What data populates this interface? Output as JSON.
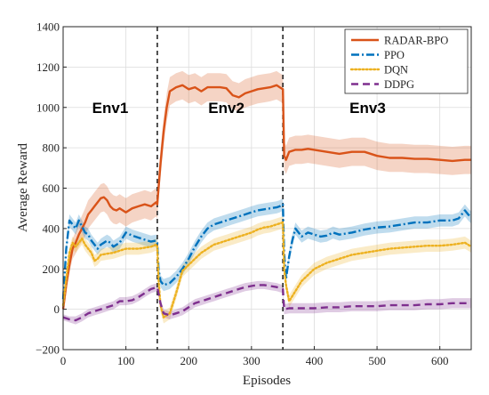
{
  "chart_data": {
    "type": "line",
    "xlabel": "Episodes",
    "ylabel": "Average Reward",
    "xlim": [
      0,
      650
    ],
    "ylim": [
      -200,
      1400
    ],
    "xticks": [
      0,
      100,
      200,
      300,
      400,
      500,
      600
    ],
    "yticks": [
      -200,
      0,
      200,
      400,
      600,
      800,
      1000,
      1200,
      1400
    ],
    "grid": true,
    "legend_position": "top-right",
    "env_boundaries": [
      150,
      350
    ],
    "annotations": [
      {
        "text": "Env1",
        "x": 75,
        "y": 1000
      },
      {
        "text": "Env2",
        "x": 260,
        "y": 1000
      },
      {
        "text": "Env3",
        "x": 485,
        "y": 1000
      }
    ],
    "series": [
      {
        "name": "RADAR-BPO",
        "color": "#d95319",
        "line_style": "solid",
        "x": [
          0,
          5,
          10,
          15,
          20,
          25,
          30,
          35,
          40,
          45,
          50,
          55,
          60,
          65,
          70,
          75,
          80,
          85,
          90,
          95,
          100,
          110,
          120,
          130,
          140,
          148,
          150,
          152,
          155,
          160,
          165,
          170,
          180,
          190,
          200,
          210,
          220,
          230,
          240,
          250,
          260,
          270,
          280,
          290,
          300,
          310,
          320,
          330,
          340,
          345,
          350,
          352,
          355,
          360,
          370,
          380,
          390,
          400,
          420,
          440,
          460,
          480,
          500,
          520,
          540,
          560,
          580,
          600,
          620,
          640,
          650
        ],
        "values": [
          0,
          120,
          220,
          300,
          330,
          370,
          400,
          430,
          470,
          490,
          510,
          530,
          550,
          555,
          540,
          510,
          495,
          490,
          500,
          490,
          480,
          500,
          510,
          520,
          510,
          530,
          520,
          600,
          720,
          880,
          1000,
          1080,
          1100,
          1110,
          1090,
          1100,
          1080,
          1100,
          1100,
          1100,
          1095,
          1060,
          1050,
          1070,
          1080,
          1090,
          1095,
          1100,
          1110,
          1100,
          1090,
          760,
          740,
          780,
          790,
          790,
          795,
          790,
          780,
          770,
          780,
          780,
          760,
          750,
          750,
          745,
          745,
          740,
          735,
          740,
          740
        ],
        "band": [
          20,
          20,
          40,
          50,
          55,
          60,
          65,
          70,
          70,
          70,
          70,
          70,
          70,
          70,
          70,
          70,
          70,
          70,
          70,
          70,
          70,
          70,
          70,
          70,
          70,
          70,
          70,
          70,
          70,
          70,
          70,
          70,
          70,
          70,
          70,
          70,
          70,
          70,
          70,
          70,
          70,
          70,
          70,
          70,
          70,
          70,
          70,
          70,
          70,
          70,
          70,
          70,
          70,
          70,
          70,
          70,
          70,
          70,
          70,
          70,
          70,
          70,
          70,
          70,
          70,
          70,
          70,
          70,
          70,
          70,
          70
        ]
      },
      {
        "name": "PPO",
        "color": "#0072bd",
        "line_style": "dashdot",
        "x": [
          0,
          5,
          10,
          15,
          20,
          25,
          30,
          35,
          40,
          45,
          50,
          55,
          60,
          65,
          70,
          75,
          80,
          90,
          100,
          110,
          120,
          130,
          140,
          148,
          150,
          152,
          155,
          160,
          170,
          180,
          190,
          200,
          210,
          220,
          230,
          240,
          250,
          260,
          270,
          280,
          290,
          300,
          310,
          320,
          330,
          340,
          345,
          350,
          352,
          355,
          360,
          365,
          370,
          375,
          380,
          390,
          400,
          410,
          420,
          430,
          440,
          460,
          480,
          500,
          520,
          540,
          560,
          580,
          600,
          620,
          630,
          640,
          645,
          650
        ],
        "values": [
          50,
          300,
          440,
          420,
          400,
          440,
          410,
          380,
          370,
          340,
          320,
          300,
          320,
          330,
          340,
          330,
          310,
          330,
          380,
          365,
          355,
          345,
          335,
          340,
          330,
          200,
          140,
          120,
          130,
          160,
          200,
          250,
          310,
          360,
          400,
          420,
          430,
          440,
          450,
          460,
          470,
          480,
          490,
          495,
          500,
          505,
          510,
          520,
          280,
          150,
          260,
          340,
          400,
          380,
          360,
          380,
          370,
          360,
          365,
          380,
          370,
          380,
          395,
          405,
          410,
          420,
          430,
          430,
          440,
          440,
          450,
          490,
          470,
          455
        ],
        "band": [
          20,
          20,
          30,
          30,
          30,
          30,
          30,
          30,
          30,
          30,
          30,
          30,
          30,
          30,
          30,
          30,
          30,
          30,
          30,
          30,
          30,
          30,
          30,
          30,
          30,
          30,
          30,
          30,
          30,
          30,
          30,
          30,
          30,
          30,
          30,
          30,
          30,
          30,
          30,
          30,
          30,
          30,
          30,
          30,
          30,
          30,
          30,
          30,
          30,
          30,
          30,
          30,
          30,
          30,
          30,
          30,
          30,
          30,
          30,
          30,
          30,
          30,
          30,
          30,
          30,
          30,
          30,
          30,
          30,
          30,
          30,
          30,
          30,
          30
        ]
      },
      {
        "name": "DQN",
        "color": "#edb120",
        "line_style": "dotted",
        "x": [
          0,
          5,
          10,
          15,
          20,
          25,
          30,
          35,
          40,
          45,
          50,
          55,
          60,
          70,
          80,
          90,
          100,
          110,
          120,
          130,
          140,
          148,
          150,
          152,
          155,
          160,
          170,
          180,
          190,
          200,
          210,
          220,
          230,
          240,
          250,
          260,
          270,
          280,
          290,
          300,
          310,
          320,
          330,
          340,
          350,
          352,
          355,
          360,
          370,
          380,
          390,
          400,
          420,
          440,
          460,
          480,
          500,
          520,
          540,
          560,
          580,
          600,
          620,
          640,
          645,
          650
        ],
        "values": [
          20,
          150,
          280,
          330,
          310,
          330,
          350,
          320,
          300,
          280,
          240,
          250,
          270,
          275,
          280,
          290,
          300,
          300,
          300,
          305,
          310,
          320,
          310,
          150,
          20,
          -40,
          -20,
          80,
          190,
          220,
          250,
          280,
          300,
          320,
          330,
          340,
          350,
          360,
          370,
          380,
          395,
          405,
          410,
          420,
          430,
          200,
          120,
          40,
          90,
          140,
          170,
          200,
          230,
          250,
          270,
          280,
          290,
          300,
          305,
          310,
          315,
          315,
          320,
          330,
          320,
          310
        ],
        "band": [
          20,
          20,
          30,
          30,
          30,
          30,
          30,
          30,
          30,
          30,
          30,
          30,
          30,
          30,
          30,
          30,
          30,
          30,
          30,
          30,
          30,
          30,
          30,
          30,
          30,
          30,
          30,
          30,
          30,
          30,
          30,
          30,
          30,
          30,
          30,
          30,
          30,
          30,
          30,
          30,
          30,
          30,
          30,
          30,
          30,
          30,
          30,
          30,
          30,
          30,
          30,
          30,
          30,
          30,
          30,
          30,
          30,
          30,
          30,
          30,
          30,
          30,
          30,
          30,
          30,
          30
        ]
      },
      {
        "name": "DDPG",
        "color": "#7e2f8e",
        "line_style": "dashed",
        "x": [
          0,
          10,
          20,
          30,
          40,
          50,
          60,
          70,
          80,
          90,
          100,
          110,
          120,
          130,
          140,
          150,
          155,
          160,
          170,
          180,
          190,
          200,
          210,
          220,
          230,
          240,
          250,
          260,
          270,
          280,
          290,
          300,
          310,
          320,
          330,
          340,
          350,
          352,
          360,
          380,
          400,
          420,
          440,
          460,
          480,
          500,
          520,
          540,
          560,
          580,
          600,
          620,
          640,
          650
        ],
        "values": [
          -40,
          -50,
          -55,
          -40,
          -20,
          -10,
          0,
          10,
          20,
          40,
          40,
          45,
          60,
          80,
          100,
          110,
          30,
          -20,
          -30,
          -20,
          -10,
          10,
          30,
          40,
          50,
          60,
          70,
          80,
          90,
          100,
          110,
          115,
          120,
          120,
          115,
          110,
          100,
          0,
          5,
          5,
          5,
          10,
          10,
          15,
          15,
          15,
          20,
          20,
          20,
          25,
          25,
          30,
          30,
          30
        ],
        "band": [
          15,
          15,
          20,
          20,
          20,
          20,
          20,
          20,
          20,
          20,
          20,
          20,
          20,
          20,
          20,
          20,
          20,
          20,
          20,
          20,
          20,
          20,
          20,
          20,
          20,
          20,
          20,
          20,
          20,
          20,
          20,
          20,
          20,
          20,
          20,
          20,
          20,
          25,
          25,
          25,
          25,
          25,
          25,
          25,
          25,
          25,
          25,
          25,
          25,
          25,
          25,
          25,
          25,
          25
        ]
      }
    ]
  }
}
